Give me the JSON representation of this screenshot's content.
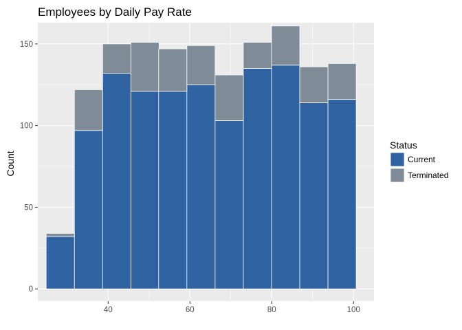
{
  "chart_data": {
    "type": "bar",
    "stacked": true,
    "title": "Employees by Daily Pay Rate",
    "xlabel": "",
    "ylabel": "Count",
    "x_bin_centers": [
      28.3,
      35.2,
      42.1,
      49.0,
      55.8,
      62.7,
      69.6,
      76.5,
      83.4,
      90.3,
      97.2
    ],
    "bin_width": 6.9,
    "series": [
      {
        "name": "Current",
        "color": "#2e62a0",
        "values": [
          32,
          97,
          132,
          121,
          121,
          125,
          103,
          135,
          137,
          114,
          116
        ]
      },
      {
        "name": "Terminated",
        "color": "#7f8c97",
        "values": [
          2,
          25,
          18,
          30,
          26,
          24,
          28,
          16,
          24,
          22,
          22
        ]
      }
    ],
    "xlim": [
      22.8,
      105.0
    ],
    "ylim": [
      -7.5,
      163
    ],
    "x_ticks": [
      40,
      60,
      80,
      100
    ],
    "x_tick_labels": [
      "40",
      "60",
      "80",
      "100"
    ],
    "y_ticks": [
      0,
      50,
      100,
      150
    ],
    "y_tick_labels": [
      "0",
      "50",
      "100",
      "150"
    ],
    "grid": true,
    "legend": {
      "title": "Status",
      "placement": "right",
      "entries": [
        "Current",
        "Terminated"
      ]
    },
    "colors": {
      "panel_background": "#ebebeb",
      "grid_major": "#ffffff",
      "bar_outline": "#ffffff"
    }
  }
}
